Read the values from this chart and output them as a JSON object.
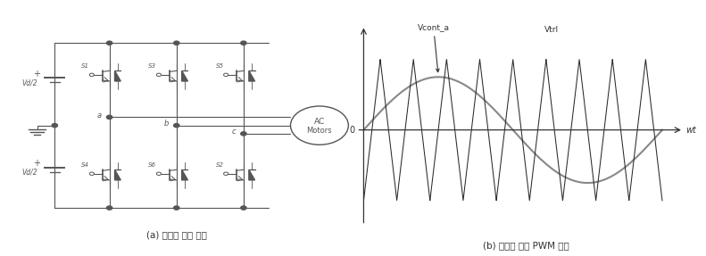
{
  "fig_width": 7.91,
  "fig_height": 2.87,
  "dpi": 100,
  "bg_color": "#ffffff",
  "line_color": "#555555",
  "label_a": "(a) 인버터 회로 구성",
  "label_b": "(b) 삼각파 비교 PWM 방식",
  "vcont_label": "Vcont_a",
  "vtrl_label": "Vtrl",
  "wt_label": "wt",
  "zero_label": "0",
  "sine_amp": 0.75,
  "tri_amp": 1.0,
  "tri_freq_ratio": 9
}
